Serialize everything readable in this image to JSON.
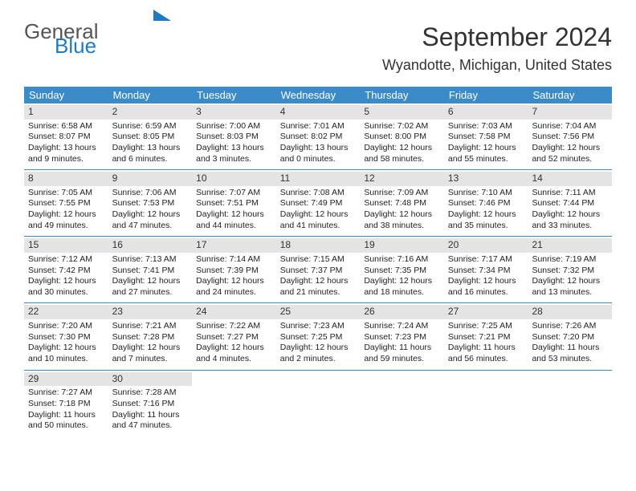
{
  "logo": {
    "part1": "General",
    "part2": "Blue"
  },
  "header": {
    "month_title": "September 2024",
    "location": "Wyandotte, Michigan, United States"
  },
  "colors": {
    "header_bg": "#3b8bc9",
    "header_text": "#ffffff",
    "daynum_bg": "#e4e4e4",
    "row_border": "#3b8bc9",
    "logo_gray": "#555555",
    "logo_blue": "#1f7bbf",
    "text": "#222222"
  },
  "day_headers": [
    "Sunday",
    "Monday",
    "Tuesday",
    "Wednesday",
    "Thursday",
    "Friday",
    "Saturday"
  ],
  "weeks": [
    [
      {
        "n": "1",
        "sunrise": "Sunrise: 6:58 AM",
        "sunset": "Sunset: 8:07 PM",
        "daylight": "Daylight: 13 hours and 9 minutes."
      },
      {
        "n": "2",
        "sunrise": "Sunrise: 6:59 AM",
        "sunset": "Sunset: 8:05 PM",
        "daylight": "Daylight: 13 hours and 6 minutes."
      },
      {
        "n": "3",
        "sunrise": "Sunrise: 7:00 AM",
        "sunset": "Sunset: 8:03 PM",
        "daylight": "Daylight: 13 hours and 3 minutes."
      },
      {
        "n": "4",
        "sunrise": "Sunrise: 7:01 AM",
        "sunset": "Sunset: 8:02 PM",
        "daylight": "Daylight: 13 hours and 0 minutes."
      },
      {
        "n": "5",
        "sunrise": "Sunrise: 7:02 AM",
        "sunset": "Sunset: 8:00 PM",
        "daylight": "Daylight: 12 hours and 58 minutes."
      },
      {
        "n": "6",
        "sunrise": "Sunrise: 7:03 AM",
        "sunset": "Sunset: 7:58 PM",
        "daylight": "Daylight: 12 hours and 55 minutes."
      },
      {
        "n": "7",
        "sunrise": "Sunrise: 7:04 AM",
        "sunset": "Sunset: 7:56 PM",
        "daylight": "Daylight: 12 hours and 52 minutes."
      }
    ],
    [
      {
        "n": "8",
        "sunrise": "Sunrise: 7:05 AM",
        "sunset": "Sunset: 7:55 PM",
        "daylight": "Daylight: 12 hours and 49 minutes."
      },
      {
        "n": "9",
        "sunrise": "Sunrise: 7:06 AM",
        "sunset": "Sunset: 7:53 PM",
        "daylight": "Daylight: 12 hours and 47 minutes."
      },
      {
        "n": "10",
        "sunrise": "Sunrise: 7:07 AM",
        "sunset": "Sunset: 7:51 PM",
        "daylight": "Daylight: 12 hours and 44 minutes."
      },
      {
        "n": "11",
        "sunrise": "Sunrise: 7:08 AM",
        "sunset": "Sunset: 7:49 PM",
        "daylight": "Daylight: 12 hours and 41 minutes."
      },
      {
        "n": "12",
        "sunrise": "Sunrise: 7:09 AM",
        "sunset": "Sunset: 7:48 PM",
        "daylight": "Daylight: 12 hours and 38 minutes."
      },
      {
        "n": "13",
        "sunrise": "Sunrise: 7:10 AM",
        "sunset": "Sunset: 7:46 PM",
        "daylight": "Daylight: 12 hours and 35 minutes."
      },
      {
        "n": "14",
        "sunrise": "Sunrise: 7:11 AM",
        "sunset": "Sunset: 7:44 PM",
        "daylight": "Daylight: 12 hours and 33 minutes."
      }
    ],
    [
      {
        "n": "15",
        "sunrise": "Sunrise: 7:12 AM",
        "sunset": "Sunset: 7:42 PM",
        "daylight": "Daylight: 12 hours and 30 minutes."
      },
      {
        "n": "16",
        "sunrise": "Sunrise: 7:13 AM",
        "sunset": "Sunset: 7:41 PM",
        "daylight": "Daylight: 12 hours and 27 minutes."
      },
      {
        "n": "17",
        "sunrise": "Sunrise: 7:14 AM",
        "sunset": "Sunset: 7:39 PM",
        "daylight": "Daylight: 12 hours and 24 minutes."
      },
      {
        "n": "18",
        "sunrise": "Sunrise: 7:15 AM",
        "sunset": "Sunset: 7:37 PM",
        "daylight": "Daylight: 12 hours and 21 minutes."
      },
      {
        "n": "19",
        "sunrise": "Sunrise: 7:16 AM",
        "sunset": "Sunset: 7:35 PM",
        "daylight": "Daylight: 12 hours and 18 minutes."
      },
      {
        "n": "20",
        "sunrise": "Sunrise: 7:17 AM",
        "sunset": "Sunset: 7:34 PM",
        "daylight": "Daylight: 12 hours and 16 minutes."
      },
      {
        "n": "21",
        "sunrise": "Sunrise: 7:19 AM",
        "sunset": "Sunset: 7:32 PM",
        "daylight": "Daylight: 12 hours and 13 minutes."
      }
    ],
    [
      {
        "n": "22",
        "sunrise": "Sunrise: 7:20 AM",
        "sunset": "Sunset: 7:30 PM",
        "daylight": "Daylight: 12 hours and 10 minutes."
      },
      {
        "n": "23",
        "sunrise": "Sunrise: 7:21 AM",
        "sunset": "Sunset: 7:28 PM",
        "daylight": "Daylight: 12 hours and 7 minutes."
      },
      {
        "n": "24",
        "sunrise": "Sunrise: 7:22 AM",
        "sunset": "Sunset: 7:27 PM",
        "daylight": "Daylight: 12 hours and 4 minutes."
      },
      {
        "n": "25",
        "sunrise": "Sunrise: 7:23 AM",
        "sunset": "Sunset: 7:25 PM",
        "daylight": "Daylight: 12 hours and 2 minutes."
      },
      {
        "n": "26",
        "sunrise": "Sunrise: 7:24 AM",
        "sunset": "Sunset: 7:23 PM",
        "daylight": "Daylight: 11 hours and 59 minutes."
      },
      {
        "n": "27",
        "sunrise": "Sunrise: 7:25 AM",
        "sunset": "Sunset: 7:21 PM",
        "daylight": "Daylight: 11 hours and 56 minutes."
      },
      {
        "n": "28",
        "sunrise": "Sunrise: 7:26 AM",
        "sunset": "Sunset: 7:20 PM",
        "daylight": "Daylight: 11 hours and 53 minutes."
      }
    ],
    [
      {
        "n": "29",
        "sunrise": "Sunrise: 7:27 AM",
        "sunset": "Sunset: 7:18 PM",
        "daylight": "Daylight: 11 hours and 50 minutes."
      },
      {
        "n": "30",
        "sunrise": "Sunrise: 7:28 AM",
        "sunset": "Sunset: 7:16 PM",
        "daylight": "Daylight: 11 hours and 47 minutes."
      },
      null,
      null,
      null,
      null,
      null
    ]
  ]
}
